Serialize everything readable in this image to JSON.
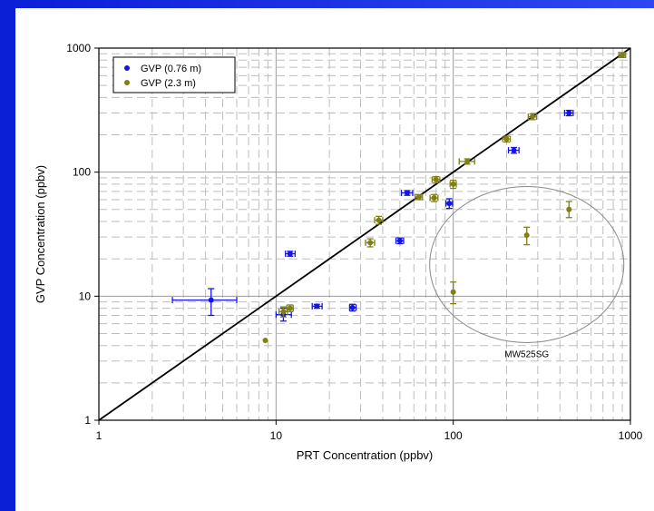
{
  "chart_data": {
    "type": "scatter",
    "xlabel": "PRT Concentration (ppbv)",
    "ylabel": "GVP Concentration (ppbv)",
    "xscale": "log",
    "yscale": "log",
    "xlim": [
      1,
      1000
    ],
    "ylim": [
      1,
      1000
    ],
    "x_ticks": [
      "1",
      "10",
      "100",
      "1000"
    ],
    "y_ticks": [
      "1",
      "10",
      "100",
      "1000"
    ],
    "grid": true,
    "legend_position": "top-left",
    "reference_line": "1:1",
    "series": [
      {
        "name": "GVP (0.76 m)",
        "color": "#1414e6",
        "points": [
          {
            "x": 4.3,
            "y": 9.3,
            "xerr": [
              2.6,
              6.0
            ],
            "yerr": [
              7.0,
              11.5
            ]
          },
          {
            "x": 11.0,
            "y": 7.1,
            "xerr": [
              10.0,
              12.2
            ],
            "yerr": [
              6.3,
              8.0
            ]
          },
          {
            "x": 12.0,
            "y": 22,
            "xerr": [
              11.3,
              12.8
            ],
            "yerr": [
              21,
              23
            ]
          },
          {
            "x": 17.0,
            "y": 8.3,
            "xerr": [
              16.0,
              18.2
            ],
            "yerr": [
              8.0,
              8.6
            ]
          },
          {
            "x": 27.0,
            "y": 8.1,
            "xerr": [
              26.0,
              28.3
            ],
            "yerr": [
              7.6,
              8.6
            ]
          },
          {
            "x": 50.0,
            "y": 28,
            "xerr": [
              47.5,
              52.5
            ],
            "yerr": [
              26.5,
              29.5
            ]
          },
          {
            "x": 55.0,
            "y": 68,
            "xerr": [
              51,
              59
            ],
            "yerr": [
              65,
              71
            ]
          },
          {
            "x": 95.0,
            "y": 56,
            "xerr": [
              91,
              99
            ],
            "yerr": [
              51,
              61
            ]
          },
          {
            "x": 220.0,
            "y": 150,
            "xerr": [
              205,
              235
            ],
            "yerr": [
              142,
              158
            ]
          },
          {
            "x": 450.0,
            "y": 300,
            "xerr": [
              425,
              475
            ],
            "yerr": [
              285,
              315
            ]
          }
        ]
      },
      {
        "name": "GVP (2.3 m)",
        "color": "#7f7f14",
        "points": [
          {
            "x": 8.7,
            "y": 4.4,
            "xerr": [
              8.7,
              8.7
            ],
            "yerr": [
              4.4,
              4.4
            ]
          },
          {
            "x": 11.0,
            "y": 7.5,
            "xerr": [
              10.4,
              11.6
            ],
            "yerr": [
              6.8,
              8.2
            ]
          },
          {
            "x": 12.0,
            "y": 8.0,
            "xerr": [
              11.5,
              12.5
            ],
            "yerr": [
              7.5,
              8.5
            ]
          },
          {
            "x": 34.0,
            "y": 27,
            "xerr": [
              32,
              36
            ],
            "yerr": [
              25,
              29
            ]
          },
          {
            "x": 38.0,
            "y": 41,
            "xerr": [
              36,
              40
            ],
            "yerr": [
              38,
              44
            ]
          },
          {
            "x": 64.0,
            "y": 63,
            "xerr": [
              61,
              67
            ],
            "yerr": [
              60,
              66
            ]
          },
          {
            "x": 78.0,
            "y": 62,
            "xerr": [
              74,
              82
            ],
            "yerr": [
              58,
              66
            ]
          },
          {
            "x": 80.0,
            "y": 87,
            "xerr": [
              76,
              84
            ],
            "yerr": [
              82,
              92
            ]
          },
          {
            "x": 100.0,
            "y": 80,
            "xerr": [
              96,
              104
            ],
            "yerr": [
              74,
              86
            ]
          },
          {
            "x": 100.0,
            "y": 10.8,
            "xerr": [
              100,
              100
            ],
            "yerr": [
              8.7,
              13
            ]
          },
          {
            "x": 120.0,
            "y": 122,
            "xerr": [
              108,
              132
            ],
            "yerr": [
              116,
              128
            ]
          },
          {
            "x": 200.0,
            "y": 185,
            "xerr": [
              190,
              210
            ],
            "yerr": [
              175,
              195
            ]
          },
          {
            "x": 260.0,
            "y": 31,
            "xerr": [
              260,
              260
            ],
            "yerr": [
              26,
              36
            ]
          },
          {
            "x": 280.0,
            "y": 280,
            "xerr": [
              265,
              295
            ],
            "yerr": [
              265,
              295
            ]
          },
          {
            "x": 450.0,
            "y": 50,
            "xerr": [
              450,
              450
            ],
            "yerr": [
              43,
              58
            ]
          },
          {
            "x": 900.0,
            "y": 880,
            "xerr": [
              860,
              940
            ],
            "yerr": [
              840,
              920
            ]
          }
        ]
      }
    ],
    "annotations": [
      {
        "text": "MW525SG",
        "ellipse_center": [
          260,
          18
        ],
        "target": "outlier group"
      }
    ]
  }
}
